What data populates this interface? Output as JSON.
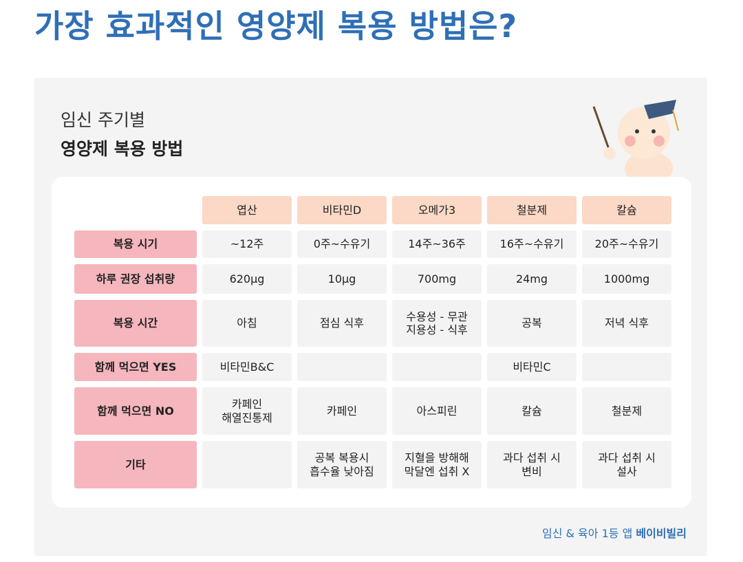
{
  "title": "가장 효과적인 영양제 복용 방법은?",
  "card": {
    "subtitle": "임신 주기별",
    "heading": "영양제 복용 방법"
  },
  "table": {
    "columns": [
      "엽산",
      "비타민D",
      "오메가3",
      "철분제",
      "칼슘"
    ],
    "rows": [
      {
        "label": "복용 시기",
        "cells": [
          "~12주",
          "0주~수유기",
          "14주~36주",
          "16주~수유기",
          "20주~수유기"
        ]
      },
      {
        "label": "하루 권장 섭취량",
        "cells": [
          "620μg",
          "10μg",
          "700mg",
          "24mg",
          "1000mg"
        ]
      },
      {
        "label": "복용 시간",
        "cells": [
          "아침",
          "점심 식후",
          "수용성 - 무관\n지용성 - 식후",
          "공복",
          "저녁 식후"
        ]
      },
      {
        "label": "함께 먹으면 YES",
        "cells": [
          "비타민B&C",
          null,
          null,
          "비타민C",
          null
        ]
      },
      {
        "label": "함께 먹으면 NO",
        "cells": [
          "카페인\n해열진통제",
          "카페인",
          "아스피린",
          "칼슘",
          "철분제"
        ]
      },
      {
        "label": "기타",
        "cells": [
          null,
          "공복 복용시\n흡수율 낮아짐",
          "지혈을 방해해\n막달엔 섭취 X",
          "과다 섭취 시\n변비",
          "과다 섭취 시\n설사"
        ]
      }
    ]
  },
  "footer": {
    "text": "임신 & 육아 1등 앱",
    "brand": "베이비빌리"
  }
}
